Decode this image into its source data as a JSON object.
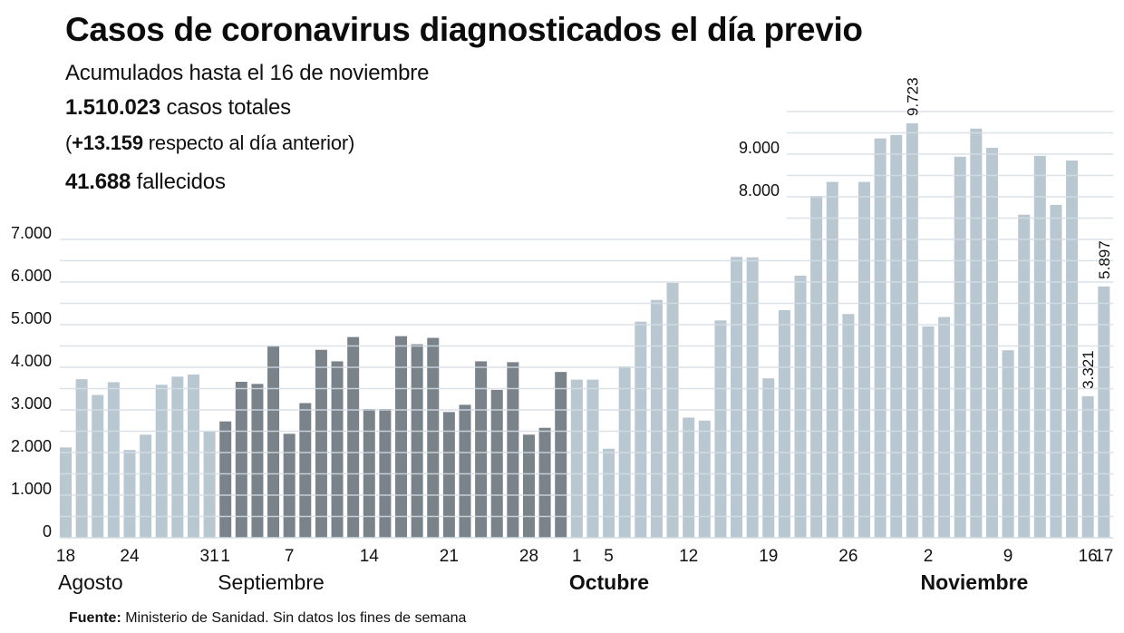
{
  "header": {
    "title": "Casos de coronavirus diagnosticados el día previo",
    "subtitle": "Acumulados hasta el 16 de noviembre",
    "total_cases_value": "1.510.023",
    "total_cases_label": " casos totales",
    "delta_open": "(",
    "delta_value": "+13.159",
    "delta_label": " respecto al día anterior)",
    "deaths_value": "41.688",
    "deaths_label": " fallecidos"
  },
  "footer": {
    "source_label": "Fuente:",
    "source_text": " Ministerio de Sanidad. Sin datos los fines de semana"
  },
  "colors": {
    "light_bar": "#b9c7d1",
    "dark_bar": "#7a838a",
    "grid": "#d3dde4"
  },
  "chart_data": {
    "type": "bar",
    "title": "Casos de coronavirus diagnosticados el día previo",
    "xlabel": "",
    "ylabel": "",
    "ylim": [
      0,
      10000
    ],
    "grid": true,
    "y_ticks_left": [
      {
        "value": 0,
        "label": "0"
      },
      {
        "value": 1000,
        "label": "1.000"
      },
      {
        "value": 2000,
        "label": "2.000"
      },
      {
        "value": 3000,
        "label": "3.000"
      },
      {
        "value": 4000,
        "label": "4.000"
      },
      {
        "value": 5000,
        "label": "5.000"
      },
      {
        "value": 6000,
        "label": "6.000"
      },
      {
        "value": 7000,
        "label": "7.000"
      }
    ],
    "y_ticks_right": [
      {
        "value": 8000,
        "label": "8.000"
      },
      {
        "value": 9000,
        "label": "9.000"
      }
    ],
    "x_tick_labels": [
      {
        "index": 0,
        "label": "18"
      },
      {
        "index": 4,
        "label": "24"
      },
      {
        "index": 9,
        "label": "31"
      },
      {
        "index": 10,
        "label": "1"
      },
      {
        "index": 14,
        "label": "7"
      },
      {
        "index": 19,
        "label": "14"
      },
      {
        "index": 24,
        "label": "21"
      },
      {
        "index": 29,
        "label": "28"
      },
      {
        "index": 32,
        "label": "1"
      },
      {
        "index": 34,
        "label": "5"
      },
      {
        "index": 39,
        "label": "12"
      },
      {
        "index": 44,
        "label": "19"
      },
      {
        "index": 49,
        "label": "26"
      },
      {
        "index": 54,
        "label": "2"
      },
      {
        "index": 59,
        "label": "9"
      },
      {
        "index": 64,
        "label": "16"
      },
      {
        "index": 65,
        "label": "17"
      }
    ],
    "months": [
      {
        "index": 0,
        "label": "Agosto",
        "bold": false
      },
      {
        "index": 10,
        "label": "Septiembre",
        "bold": false
      },
      {
        "index": 32,
        "label": "Octubre",
        "bold": true
      },
      {
        "index": 54,
        "label": "Noviembre",
        "bold": true
      }
    ],
    "annotations": [
      {
        "index": 53,
        "label": "9.723"
      },
      {
        "index": 64,
        "label": "3.321"
      },
      {
        "index": 65,
        "label": "5.897"
      }
    ],
    "series": [
      {
        "name": "Casos diagnosticados",
        "categories": [
          "18 ago",
          "19 ago",
          "20 ago",
          "21 ago",
          "24 ago",
          "25 ago",
          "26 ago",
          "27 ago",
          "28 ago",
          "31 ago",
          "1 sep",
          "2 sep",
          "3 sep",
          "4 sep",
          "7 sep",
          "8 sep",
          "9 sep",
          "10 sep",
          "11 sep",
          "14 sep",
          "15 sep",
          "16 sep",
          "17 sep",
          "18 sep",
          "21 sep",
          "22 sep",
          "23 sep",
          "24 sep",
          "25 sep",
          "28 sep",
          "29 sep",
          "30 sep",
          "1 oct",
          "2 oct",
          "5 oct",
          "6 oct",
          "7 oct",
          "8 oct",
          "9 oct",
          "12 oct",
          "13 oct",
          "14 oct",
          "15 oct",
          "16 oct",
          "19 oct",
          "20 oct",
          "21 oct",
          "22 oct",
          "23 oct",
          "26 oct",
          "27 oct",
          "28 oct",
          "29 oct",
          "30 oct",
          "2 nov",
          "3 nov",
          "4 nov",
          "5 nov",
          "6 nov",
          "9 nov",
          "10 nov",
          "11 nov",
          "12 nov",
          "13 nov",
          "16 nov",
          "17 nov"
        ],
        "values": [
          2120,
          3720,
          3350,
          3650,
          2060,
          2420,
          3590,
          3780,
          3830,
          2490,
          2730,
          3660,
          3610,
          4500,
          2440,
          3160,
          4410,
          4140,
          4710,
          3020,
          3020,
          4730,
          4540,
          4690,
          2950,
          3120,
          4140,
          3470,
          4120,
          2420,
          2580,
          3890,
          3710,
          3710,
          2090,
          4020,
          5070,
          5580,
          5980,
          2820,
          2750,
          5100,
          6590,
          6580,
          3740,
          5340,
          6150,
          8020,
          8350,
          5250,
          8350,
          9370,
          9450,
          9723,
          4960,
          5180,
          8940,
          9600,
          9150,
          4400,
          7580,
          8960,
          7810,
          8850,
          3321,
          5897
        ],
        "highlight_range": [
          10,
          31
        ]
      }
    ]
  }
}
